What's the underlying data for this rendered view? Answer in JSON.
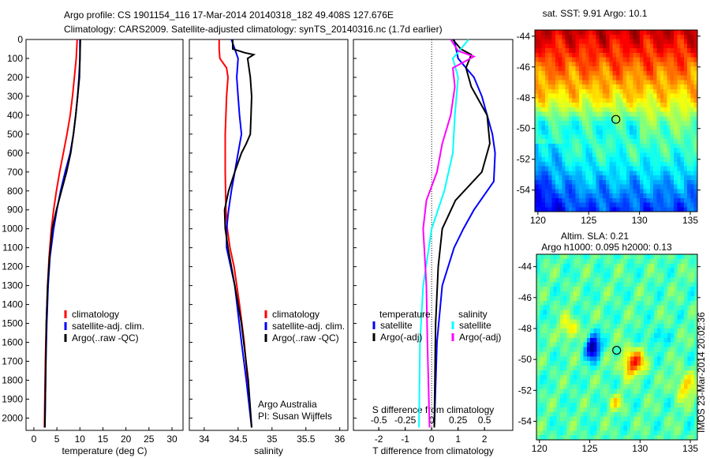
{
  "header": {
    "line1": "Argo profile: CS 1901154_116 17-Mar-2014 20140318_182 49.408S 127.676E",
    "line2": "Climatology: CARS2009. Satellite-adjusted climatology: synTS_20140316.nc (1.7d earlier)"
  },
  "credit": {
    "line1": "Argo Australia",
    "line2": "PI: Susan Wijffels"
  },
  "timestamp": "IMOS 23-Mar-2014 20:02:36",
  "colors": {
    "climatology": "#ff0000",
    "satellite": "#0000ff",
    "argo": "#000000",
    "sal_satellite": "#00ffff",
    "sal_argo": "#ff00ff"
  },
  "chart_data": [
    {
      "type": "line",
      "name": "temperature",
      "xlabel": "temperature (deg C)",
      "ylabel": "",
      "xlim": [
        -1.7,
        32.4
      ],
      "ylim": [
        2065,
        0
      ],
      "xticks": [
        "0",
        "5",
        "10",
        "15",
        "20",
        "25",
        "30"
      ],
      "yticks": [
        "0",
        "100",
        "200",
        "300",
        "400",
        "500",
        "600",
        "700",
        "800",
        "900",
        "1000",
        "1100",
        "1200",
        "1300",
        "1400",
        "1500",
        "1600",
        "1700",
        "1800",
        "1900",
        "2000"
      ],
      "legend": [
        "climatology",
        "satellite-adj. clim.",
        "Argo(..raw -QC)"
      ],
      "series": [
        {
          "name": "climatology",
          "color": "#ff0000",
          "depth": [
            0,
            100,
            200,
            300,
            400,
            500,
            600,
            700,
            800,
            900,
            1000,
            1150,
            1300,
            1500,
            1700,
            2050
          ],
          "values": [
            9.4,
            9.2,
            8.8,
            8.4,
            7.9,
            7.2,
            6.4,
            5.6,
            4.9,
            4.3,
            3.8,
            3.3,
            3.0,
            2.7,
            2.5,
            2.3
          ]
        },
        {
          "name": "satellite-adj. clim.",
          "color": "#0000ff",
          "depth": [
            0,
            100,
            200,
            300,
            400,
            500,
            600,
            700,
            800,
            900,
            1000,
            1150,
            1300,
            1500,
            1700,
            2050
          ],
          "values": [
            10.0,
            10.0,
            9.8,
            9.5,
            9.1,
            8.6,
            7.9,
            6.8,
            5.8,
            5.0,
            4.3,
            3.5,
            3.1,
            2.8,
            2.6,
            2.4
          ]
        },
        {
          "name": "Argo(..raw -QC)",
          "color": "#000000",
          "depth": [
            0,
            100,
            200,
            300,
            400,
            500,
            600,
            700,
            800,
            900,
            1000,
            1150,
            1300,
            1500,
            1700,
            2050
          ],
          "values": [
            10.1,
            10.0,
            9.9,
            9.5,
            9.1,
            8.6,
            8.0,
            7.1,
            6.0,
            4.9,
            4.0,
            3.4,
            3.0,
            2.7,
            2.6,
            2.4
          ]
        }
      ]
    },
    {
      "type": "line",
      "name": "salinity",
      "xlabel": "salinity",
      "xlim": [
        33.78,
        36.12
      ],
      "ylim": [
        2065,
        0
      ],
      "xticks": [
        "34",
        "34.5",
        "35",
        "35.5",
        "36"
      ],
      "legend": [
        "climatology",
        "satellite-adj. clim.",
        "Argo(..raw -QC)"
      ],
      "series": [
        {
          "name": "climatology",
          "color": "#ff0000",
          "depth": [
            0,
            50,
            100,
            150,
            200,
            300,
            500,
            700,
            900,
            1000,
            1100,
            1200,
            1400,
            1600,
            1800,
            2050
          ],
          "values": [
            34.22,
            34.22,
            34.23,
            34.33,
            34.35,
            34.33,
            34.31,
            34.31,
            34.32,
            34.34,
            34.38,
            34.44,
            34.52,
            34.59,
            34.64,
            34.7
          ]
        },
        {
          "name": "satellite-adj. clim.",
          "color": "#0000ff",
          "depth": [
            0,
            50,
            100,
            200,
            300,
            400,
            500,
            600,
            700,
            800,
            900,
            1000,
            1100,
            1300,
            1600,
            1800,
            2050
          ],
          "values": [
            34.4,
            34.45,
            34.5,
            34.48,
            34.5,
            34.52,
            34.55,
            34.5,
            34.45,
            34.4,
            34.36,
            34.33,
            34.33,
            34.45,
            34.55,
            34.62,
            34.7
          ]
        },
        {
          "name": "Argo(..raw -QC)",
          "color": "#000000",
          "depth": [
            0,
            50,
            70,
            80,
            100,
            150,
            200,
            300,
            400,
            500,
            550,
            600,
            700,
            800,
            900,
            1000,
            1100,
            1300,
            1500,
            1800,
            2050
          ],
          "values": [
            34.42,
            34.42,
            34.6,
            34.73,
            34.64,
            34.66,
            34.68,
            34.7,
            34.69,
            34.68,
            34.62,
            34.55,
            34.45,
            34.36,
            34.3,
            34.31,
            34.35,
            34.45,
            34.55,
            34.65,
            34.7
          ]
        }
      ]
    },
    {
      "type": "line",
      "name": "differences",
      "xlabel": "T difference from climatology",
      "xlabel2": "S difference from climatology",
      "xlim": [
        -2.96,
        3.07
      ],
      "ylim": [
        2065,
        0
      ],
      "xticks": [
        "-2",
        "-1",
        "0",
        "1",
        "2"
      ],
      "xticks2": [
        "-0.5",
        "-0.25",
        "0",
        "0.25",
        "0.5"
      ],
      "legend_titles": [
        "temperature",
        "salinity"
      ],
      "legend": [
        "satellite",
        "Argo(-adj)",
        "satellite",
        "Argo(-adj)"
      ],
      "series": [
        {
          "name": "temperature satellite",
          "color": "#0000ff",
          "unit": "T",
          "depth": [
            0,
            100,
            200,
            300,
            400,
            500,
            600,
            750,
            900,
            1000,
            1100,
            1300,
            1600,
            2050
          ],
          "values": [
            0.85,
            1.0,
            1.6,
            1.9,
            2.1,
            2.3,
            2.4,
            2.35,
            1.6,
            1.2,
            0.85,
            0.4,
            0.2,
            0.1
          ]
        },
        {
          "name": "temperature Argo(-adj)",
          "color": "#000000",
          "unit": "T",
          "depth": [
            0,
            50,
            80,
            150,
            250,
            400,
            550,
            700,
            850,
            1000,
            1200,
            1500,
            2050
          ],
          "values": [
            0.8,
            1.1,
            1.5,
            1.3,
            1.5,
            2.1,
            2.2,
            1.9,
            0.9,
            0.4,
            0.25,
            0.15,
            0.1
          ]
        },
        {
          "name": "salinity satellite",
          "color": "#00ffff",
          "unit": "S",
          "depth": [
            0,
            100,
            200,
            400,
            600,
            800,
            1000,
            1300,
            1600,
            2050
          ],
          "values": [
            0.35,
            0.2,
            0.25,
            0.22,
            0.2,
            0.12,
            0.0,
            -0.08,
            -0.11,
            -0.12
          ]
        },
        {
          "name": "salinity Argo(-adj)",
          "color": "#ff00ff",
          "unit": "S",
          "depth": [
            0,
            60,
            90,
            150,
            250,
            400,
            550,
            700,
            850,
            1000,
            1300,
            1600,
            2050
          ],
          "values": [
            0.18,
            0.25,
            0.4,
            0.2,
            0.22,
            0.18,
            0.1,
            0.05,
            -0.05,
            -0.08,
            -0.05,
            -0.04,
            -0.02
          ]
        }
      ]
    },
    {
      "type": "heatmap",
      "name": "sst-map",
      "title": "sat. SST: 9.91  Argo: 10.1",
      "xlim": [
        119.7,
        135.7
      ],
      "ylim": [
        -55.4,
        -43.6
      ],
      "xticks": [
        "120",
        "125",
        "130",
        "135"
      ],
      "yticks": [
        "-44",
        "-46",
        "-48",
        "-50",
        "-52",
        "-54"
      ],
      "marker": {
        "lon": 127.676,
        "lat": -49.408
      }
    },
    {
      "type": "heatmap",
      "name": "sla-map",
      "title": "Altim. SLA: 0.21",
      "subtitle": "Argo h1000: 0.095 h2000: 0.13",
      "xlim": [
        119.7,
        135.7
      ],
      "ylim": [
        -55.2,
        -43.2
      ],
      "xticks": [
        "120",
        "125",
        "130",
        "135"
      ],
      "yticks": [
        "-44",
        "-46",
        "-48",
        "-50",
        "-52",
        "-54"
      ],
      "marker": {
        "lon": 127.676,
        "lat": -49.408
      }
    }
  ]
}
